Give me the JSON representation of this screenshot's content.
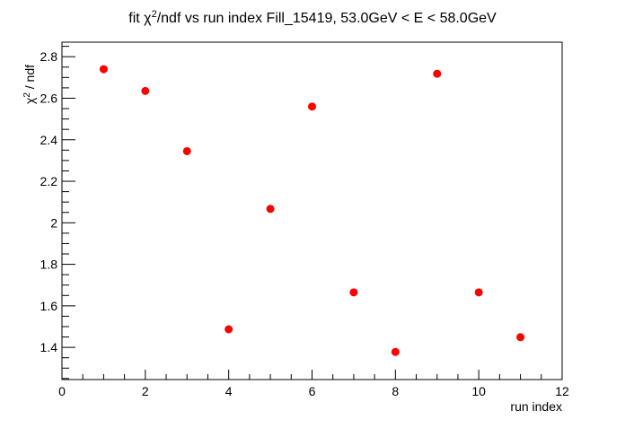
{
  "chart_data": {
    "type": "scatter",
    "title_prefix": "fit ",
    "title_chi": "χ",
    "title_sup": "2",
    "title_suffix": "/ndf vs run index Fill_15419, 53.0GeV < E < 58.0GeV",
    "xlabel": "run index",
    "ylabel_chi": "χ",
    "ylabel_sup": "2",
    "ylabel_suffix": " / ndf",
    "xlim": [
      0,
      12
    ],
    "ylim": [
      1.245,
      2.87
    ],
    "x_ticks": [
      0,
      2,
      4,
      6,
      8,
      10,
      12
    ],
    "x_tick_labels": [
      "0",
      "2",
      "4",
      "6",
      "8",
      "10",
      "12"
    ],
    "y_ticks": [
      1.4,
      1.6,
      1.8,
      2.0,
      2.2,
      2.4,
      2.6,
      2.8
    ],
    "y_tick_labels": [
      "1.4",
      "1.6",
      "1.8",
      "2",
      "2.2",
      "2.4",
      "2.6",
      "2.8"
    ],
    "marker_color": "#ff0000",
    "grid": false,
    "series": [
      {
        "x": [
          1,
          2,
          3,
          4,
          5,
          6,
          7,
          8,
          9,
          10,
          11
        ],
        "y": [
          2.74,
          2.635,
          2.345,
          1.487,
          2.067,
          2.56,
          1.665,
          1.378,
          2.718,
          1.665,
          1.449
        ]
      }
    ]
  }
}
